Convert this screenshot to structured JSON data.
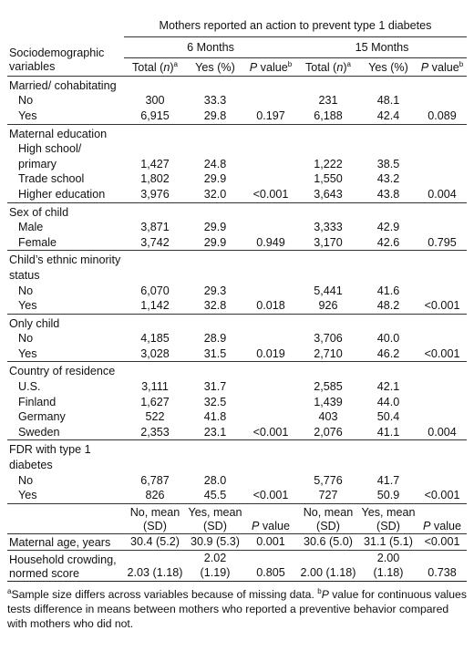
{
  "header": {
    "span_title": "Mothers reported an action to prevent type 1 diabetes",
    "col0_label": "Sociodemographic variables",
    "period_6": "6 Months",
    "period_15": "15 Months",
    "total_n": "Total (n)",
    "sup_a": "a",
    "yes_pct": "Yes (%)",
    "p_value": "P value",
    "sup_b": "b"
  },
  "groups": [
    {
      "label": "Married/ cohabitating",
      "rows": [
        {
          "label": "No",
          "t6": "300",
          "y6": "33.3",
          "p6": "",
          "t15": "231",
          "y15": "48.1",
          "p15": ""
        },
        {
          "label": "Yes",
          "t6": "6,915",
          "y6": "29.8",
          "p6": "0.197",
          "t15": "6,188",
          "y15": "42.4",
          "p15": "0.089"
        }
      ]
    },
    {
      "label": "Maternal education",
      "rows": [
        {
          "label": "High school/ primary",
          "t6": "1,427",
          "y6": "24.8",
          "p6": "",
          "t15": "1,222",
          "y15": "38.5",
          "p15": ""
        },
        {
          "label": "Trade school",
          "t6": "1,802",
          "y6": "29.9",
          "p6": "",
          "t15": "1,550",
          "y15": "43.2",
          "p15": ""
        },
        {
          "label": "Higher education",
          "t6": "3,976",
          "y6": "32.0",
          "p6": "<0.001",
          "t15": "3,643",
          "y15": "43.8",
          "p15": "0.004"
        }
      ]
    },
    {
      "label": "Sex of child",
      "rows": [
        {
          "label": "Male",
          "t6": "3,871",
          "y6": "29.9",
          "p6": "",
          "t15": "3,333",
          "y15": "42.9",
          "p15": ""
        },
        {
          "label": "Female",
          "t6": "3,742",
          "y6": "29.9",
          "p6": "0.949",
          "t15": "3,170",
          "y15": "42.6",
          "p15": "0.795"
        }
      ]
    },
    {
      "label": "Child’s ethnic minority status",
      "rows": [
        {
          "label": "No",
          "t6": "6,070",
          "y6": "29.3",
          "p6": "",
          "t15": "5,441",
          "y15": "41.6",
          "p15": ""
        },
        {
          "label": "Yes",
          "t6": "1,142",
          "y6": "32.8",
          "p6": "0.018",
          "t15": "926",
          "y15": "48.2",
          "p15": "<0.001"
        }
      ]
    },
    {
      "label": "Only child",
      "rows": [
        {
          "label": "No",
          "t6": "4,185",
          "y6": "28.9",
          "p6": "",
          "t15": "3,706",
          "y15": "40.0",
          "p15": ""
        },
        {
          "label": "Yes",
          "t6": "3,028",
          "y6": "31.5",
          "p6": "0.019",
          "t15": "2,710",
          "y15": "46.2",
          "p15": "<0.001"
        }
      ]
    },
    {
      "label": "Country of residence",
      "rows": [
        {
          "label": "U.S.",
          "t6": "3,111",
          "y6": "31.7",
          "p6": "",
          "t15": "2,585",
          "y15": "42.1",
          "p15": ""
        },
        {
          "label": "Finland",
          "t6": "1,627",
          "y6": "32.5",
          "p6": "",
          "t15": "1,439",
          "y15": "44.0",
          "p15": ""
        },
        {
          "label": "Germany",
          "t6": "522",
          "y6": "41.8",
          "p6": "",
          "t15": "403",
          "y15": "50.4",
          "p15": ""
        },
        {
          "label": "Sweden",
          "t6": "2,353",
          "y6": "23.1",
          "p6": "<0.001",
          "t15": "2,076",
          "y15": "41.1",
          "p15": "0.004"
        }
      ]
    },
    {
      "label": "FDR with type 1 diabetes",
      "rows": [
        {
          "label": "No",
          "t6": "6,787",
          "y6": "28.0",
          "p6": "",
          "t15": "5,776",
          "y15": "41.7",
          "p15": ""
        },
        {
          "label": "Yes",
          "t6": "826",
          "y6": "45.5",
          "p6": "<0.001",
          "t15": "727",
          "y15": "50.9",
          "p15": "<0.001"
        }
      ]
    }
  ],
  "cont_header": {
    "no_mean": "No, mean (SD)",
    "yes_mean": "Yes, mean (SD)",
    "p_value": "P value"
  },
  "cont_rows": [
    {
      "label": "Maternal age, years",
      "no6": "30.4 (5.2)",
      "yes6": "30.9 (5.3)",
      "p6": "0.001",
      "no15": "30.6 (5.0)",
      "yes15": "31.1 (5.1)",
      "p15": "<0.001"
    },
    {
      "label": "Household crowding, normed score",
      "no6": "2.03 (1.18)",
      "yes6": "2.02 (1.19)",
      "p6": "0.805",
      "no15": "2.00 (1.18)",
      "yes15": "2.00 (1.18)",
      "p15": "0.738"
    }
  ],
  "footnote": {
    "a_mark": "a",
    "a_text": "Sample size differs across variables because of missing data.",
    "b_mark": "b",
    "b_p": "P",
    "b_text": " value for continuous values tests difference in means between mothers who reported a preventive behavior compared with mothers who did not."
  }
}
